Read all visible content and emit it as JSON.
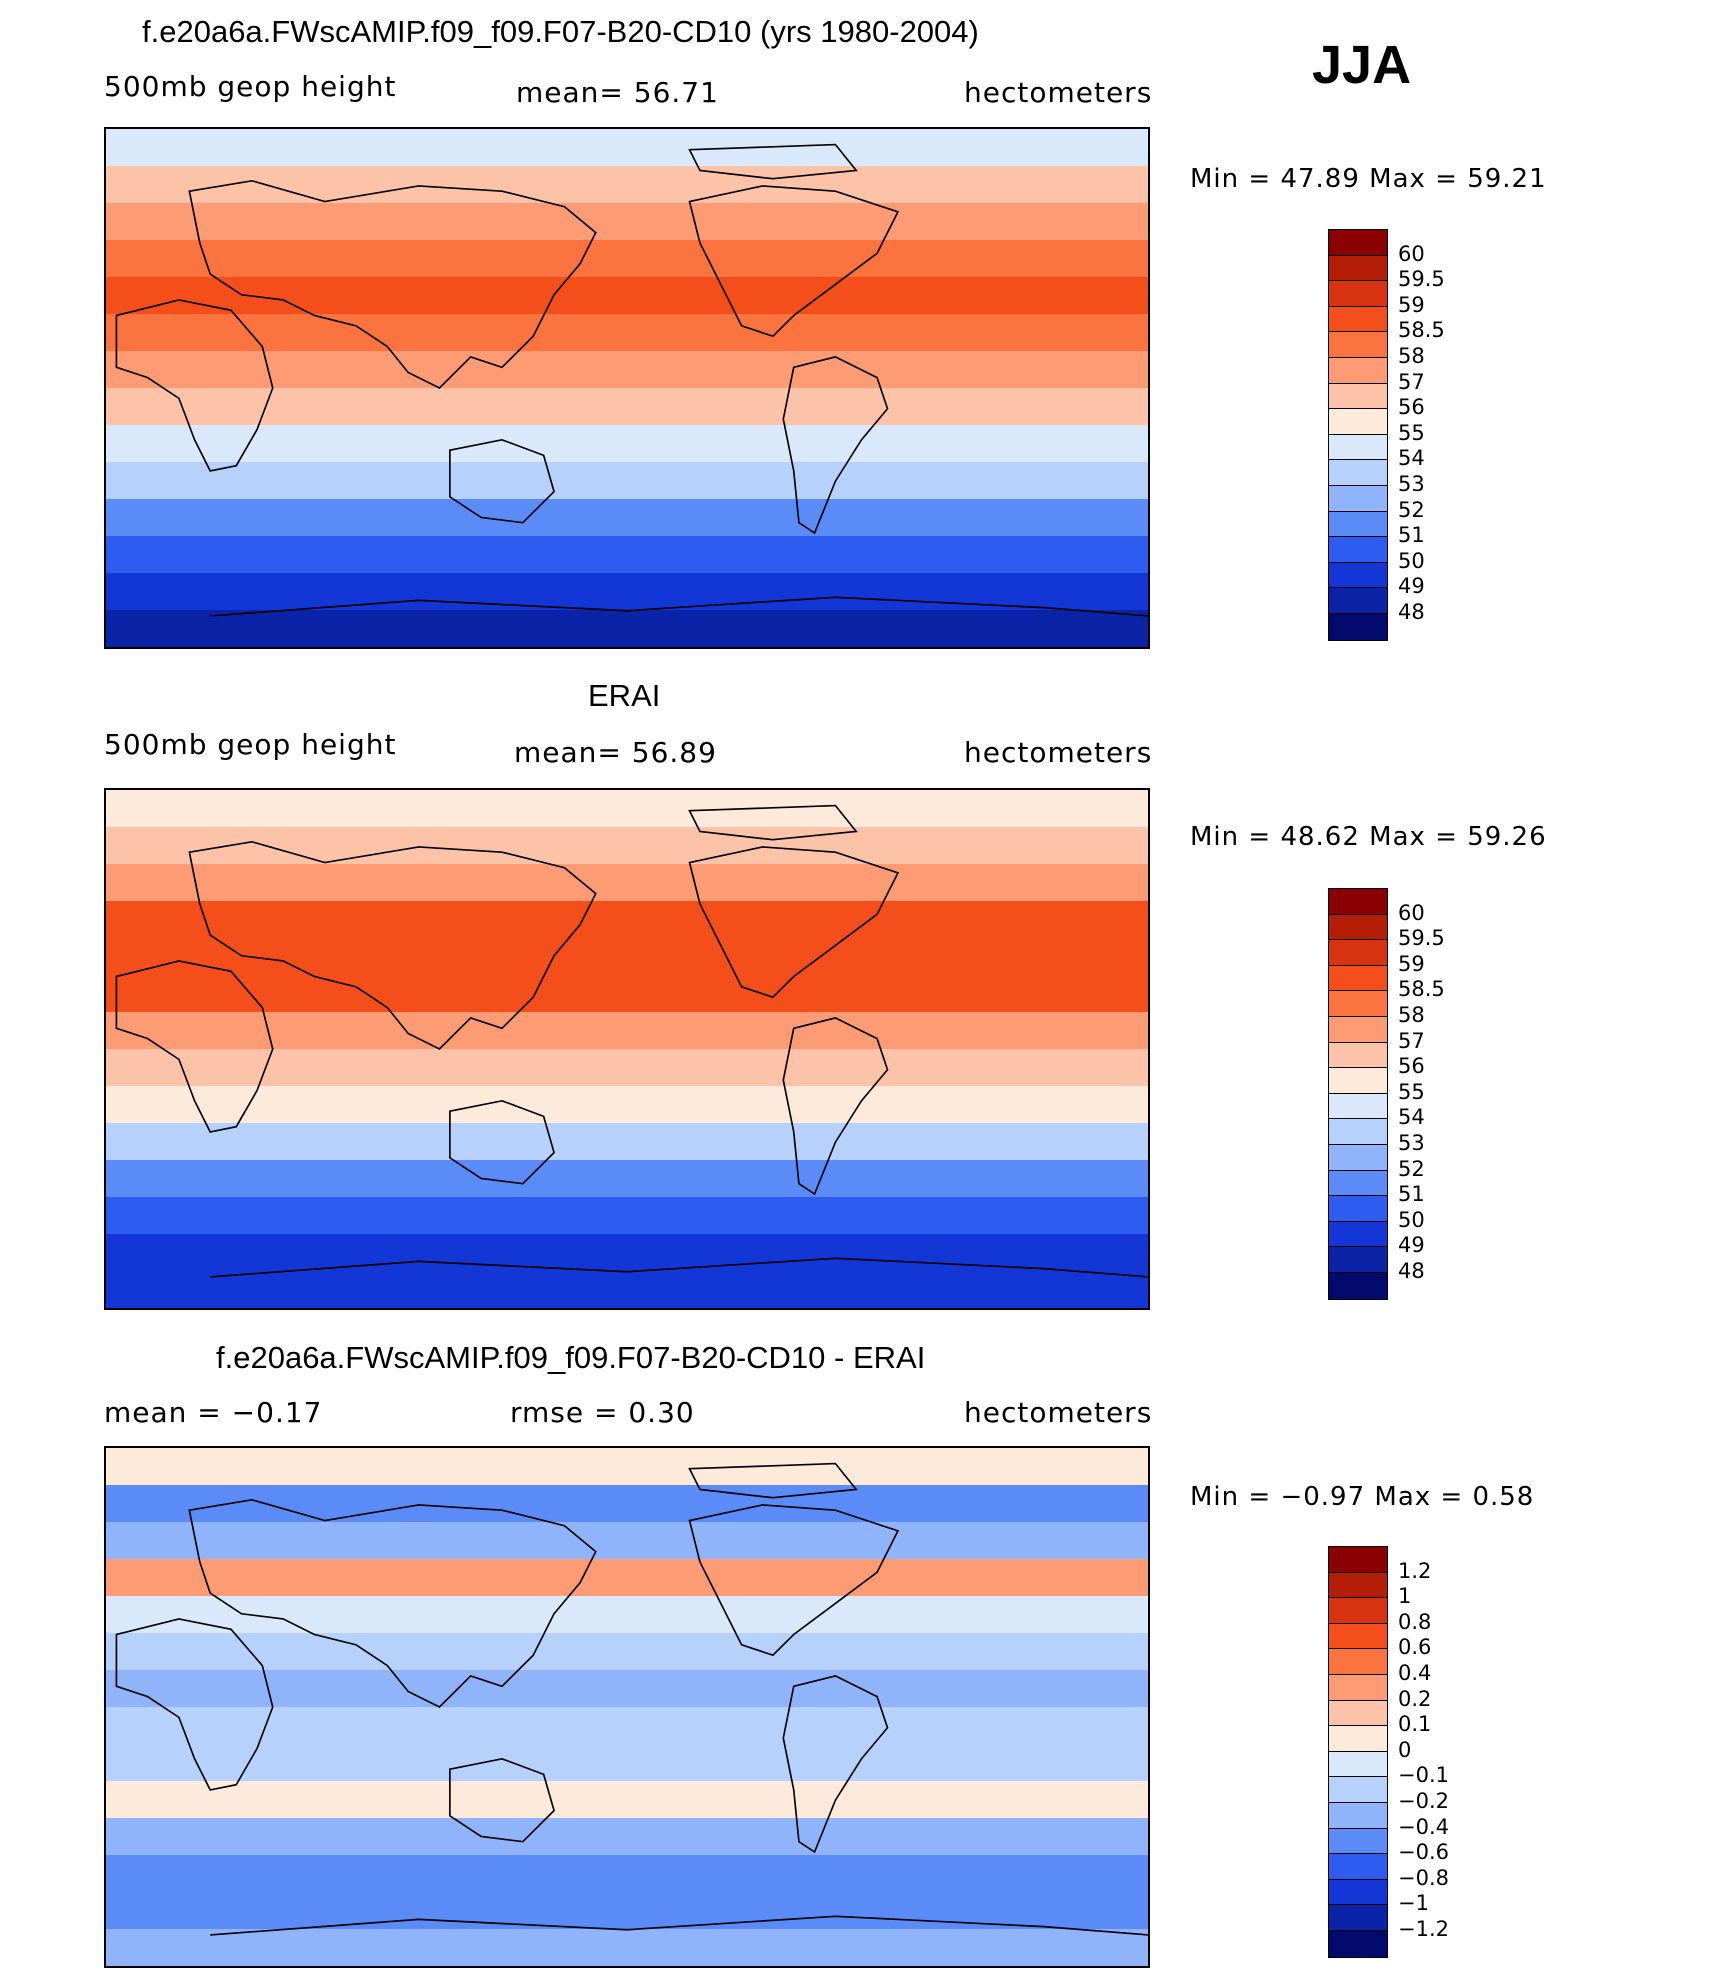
{
  "season": "JJA",
  "panels": [
    {
      "title": "f.e20a6a.FWscAMIP.f09_f09.F07-B20-CD10 (yrs 1980-2004)",
      "left": "500mb  geop  height",
      "center": "mean=   56.71",
      "right": "hectometers",
      "minmax": "Min  =    47.89  Max  =    59.21",
      "palette": "abs",
      "colorbar": {
        "labels": [
          "60",
          "59.5",
          "59",
          "58.5",
          "58",
          "57",
          "56",
          "55",
          "54",
          "53",
          "52",
          "51",
          "50",
          "49",
          "48"
        ],
        "colors": [
          "#8b0000",
          "#b41e06",
          "#d73310",
          "#f44f1a",
          "#fb7440",
          "#fc9b74",
          "#fdc3a8",
          "#feeadb",
          "#d9e9fb",
          "#b6d1fc",
          "#8fb4fb",
          "#5b8bf7",
          "#2f5cf0",
          "#1237d6",
          "#0b23a6",
          "#030a6e"
        ]
      },
      "map": {
        "levels": [
          54.5,
          56.2,
          57.5,
          58.3,
          58.7,
          58.4,
          57.6,
          56.4,
          54.8,
          53.1,
          51.6,
          50.3,
          49.4,
          48.6
        ]
      }
    },
    {
      "title": "ERAI",
      "left": "500mb  geop  height",
      "center": "mean=   56.89",
      "right": "hectometers",
      "minmax": "Min  =    48.62  Max  =    59.26",
      "palette": "abs",
      "colorbar": {
        "labels": [
          "60",
          "59.5",
          "59",
          "58.5",
          "58",
          "57",
          "56",
          "55",
          "54",
          "53",
          "52",
          "51",
          "50",
          "49",
          "48"
        ],
        "colors": [
          "#8b0000",
          "#b41e06",
          "#d73310",
          "#f44f1a",
          "#fb7440",
          "#fc9b74",
          "#fdc3a8",
          "#feeadb",
          "#d9e9fb",
          "#b6d1fc",
          "#8fb4fb",
          "#5b8bf7",
          "#2f5cf0",
          "#1237d6",
          "#0b23a6",
          "#030a6e"
        ]
      },
      "map": {
        "levels": [
          55.2,
          56.8,
          57.8,
          58.6,
          58.8,
          58.7,
          57.9,
          56.8,
          55.2,
          53.4,
          51.9,
          50.6,
          49.6,
          49.0
        ]
      }
    },
    {
      "title": "f.e20a6a.FWscAMIP.f09_f09.F07-B20-CD10 - ERAI",
      "left": "mean  =    −0.17",
      "center": "rmse  =     0.30",
      "right": "hectometers",
      "minmax": "Min  =    −0.97  Max  =     0.58",
      "palette": "diff",
      "colorbar": {
        "labels": [
          "1.2",
          "1",
          "0.8",
          "0.6",
          "0.4",
          "0.2",
          "0.1",
          "0",
          "−0.1",
          "−0.2",
          "−0.4",
          "−0.6",
          "−0.8",
          "−1",
          "−1.2"
        ],
        "colors": [
          "#8b0000",
          "#b41e06",
          "#d73310",
          "#f44f1a",
          "#fb7440",
          "#fc9b74",
          "#fdc3a8",
          "#feeadb",
          "#d9e9fb",
          "#b6d1fc",
          "#8fb4fb",
          "#5b8bf7",
          "#2f5cf0",
          "#1237d6",
          "#0b23a6",
          "#030a6e"
        ]
      },
      "map": {
        "levels": [
          0.05,
          -0.45,
          -0.3,
          0.3,
          -0.05,
          -0.2,
          -0.22,
          -0.2,
          -0.2,
          0.05,
          -0.3,
          -0.5,
          -0.45,
          -0.3
        ]
      }
    }
  ]
}
